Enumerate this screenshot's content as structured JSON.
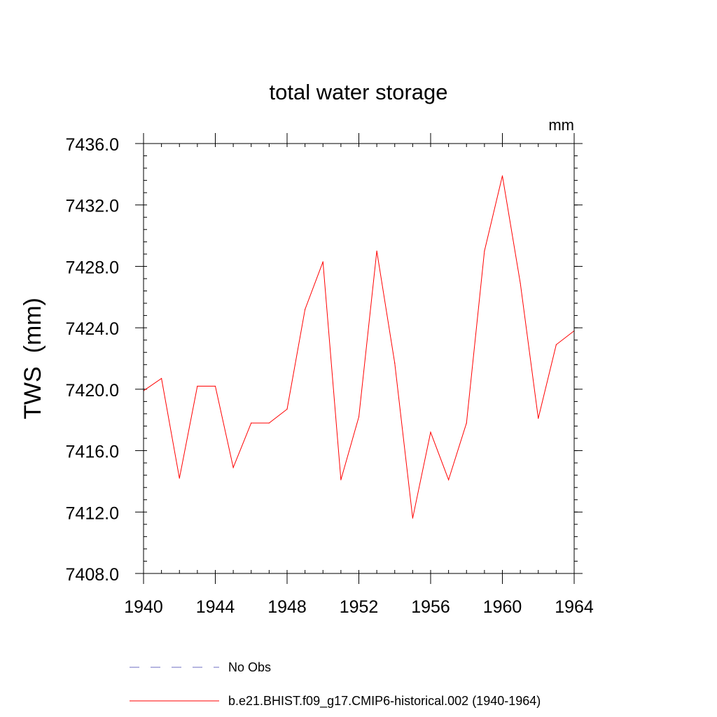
{
  "chart_data": {
    "type": "line",
    "title": "total water storage",
    "units_label": "mm",
    "ylabel": "TWS  (mm)",
    "xlabel": "",
    "xlim": [
      1940,
      1964
    ],
    "ylim": [
      7408.0,
      7436.0
    ],
    "x_ticks": [
      1940,
      1944,
      1948,
      1952,
      1956,
      1960,
      1964
    ],
    "x_tick_labels": [
      "1940",
      "1944",
      "1948",
      "1952",
      "1956",
      "1960",
      "1964"
    ],
    "y_ticks": [
      7408.0,
      7412.0,
      7416.0,
      7420.0,
      7424.0,
      7428.0,
      7432.0,
      7436.0
    ],
    "y_tick_labels": [
      "7408.0",
      "7412.0",
      "7416.0",
      "7420.0",
      "7424.0",
      "7428.0",
      "7432.0",
      "7436.0"
    ],
    "x": [
      1940,
      1941,
      1942,
      1943,
      1944,
      1945,
      1946,
      1947,
      1948,
      1949,
      1950,
      1951,
      1952,
      1953,
      1954,
      1955,
      1956,
      1957,
      1958,
      1959,
      1960,
      1961,
      1962,
      1963,
      1964
    ],
    "series": [
      {
        "name": "b.e21.BHIST.f09_g17.CMIP6-historical.002 (1940-1964)",
        "color": "#ff0000",
        "style": "solid",
        "values": [
          7419.9,
          7420.7,
          7414.2,
          7420.2,
          7420.2,
          7414.9,
          7417.8,
          7417.8,
          7418.7,
          7425.2,
          7428.3,
          7414.1,
          7418.2,
          7429.0,
          7421.7,
          7411.6,
          7417.2,
          7414.1,
          7417.8,
          7429.0,
          7433.9,
          7426.9,
          7418.1,
          7422.9,
          7423.8
        ]
      }
    ],
    "legend": {
      "placement": "bottom",
      "entries": [
        {
          "label": "No Obs",
          "color": "#6c6cc0",
          "style": "dashed"
        },
        {
          "label": "b.e21.BHIST.f09_g17.CMIP6-historical.002 (1940-1964)",
          "color": "#ff0000",
          "style": "solid"
        }
      ]
    },
    "grid": false
  }
}
